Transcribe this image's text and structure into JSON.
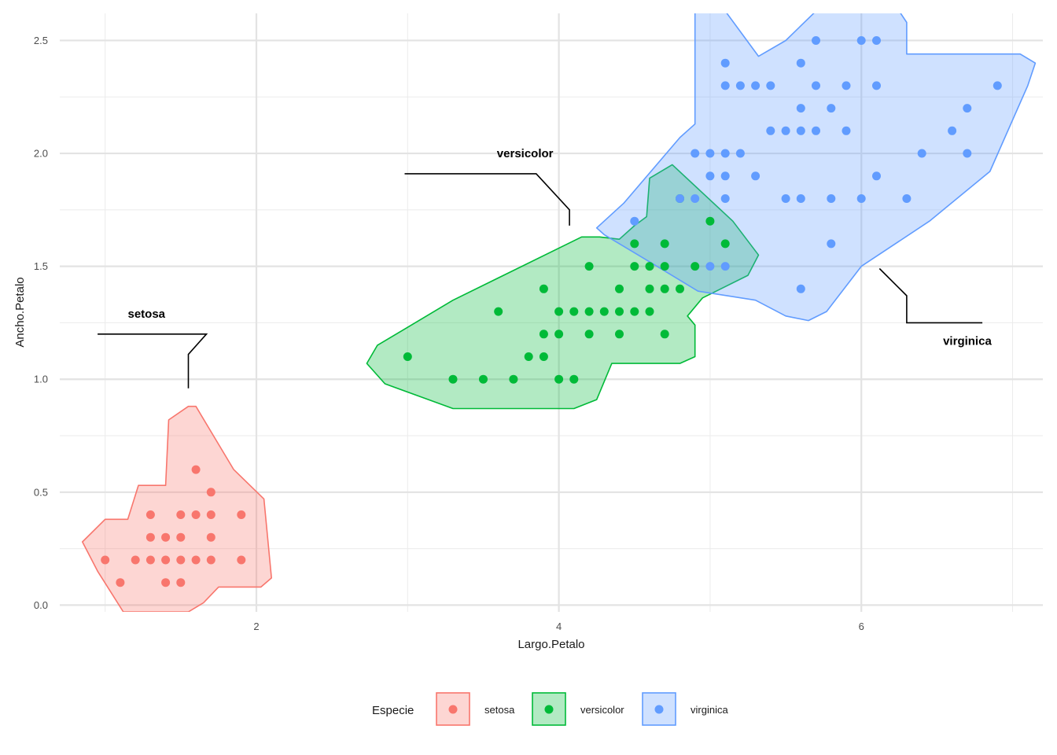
{
  "chart_data": {
    "type": "scatter",
    "xlabel": "Largo.Petalo",
    "ylabel": "Ancho.Petalo",
    "xlim": [
      0.7,
      7.2
    ],
    "ylim": [
      -0.03,
      2.62
    ],
    "x_ticks": [
      2,
      4,
      6
    ],
    "y_ticks": [
      0.0,
      0.5,
      1.0,
      1.5,
      2.0,
      2.5
    ],
    "x_tick_labels": [
      "2",
      "4",
      "6"
    ],
    "y_tick_labels": [
      "0.0",
      "0.5",
      "1.0",
      "1.5",
      "2.0",
      "2.5"
    ],
    "grid": true,
    "legend_position": "bottom",
    "legend": {
      "title": "Especie",
      "entries": [
        "setosa",
        "versicolor",
        "virginica"
      ]
    },
    "series": [
      {
        "name": "setosa",
        "color": "#F8766D",
        "hull": [
          [
            1.6,
            0.88
          ],
          [
            1.85,
            0.6
          ],
          [
            2.05,
            0.47
          ],
          [
            2.1,
            0.12
          ],
          [
            2.03,
            0.08
          ],
          [
            1.75,
            0.08
          ],
          [
            1.65,
            0.01
          ],
          [
            1.55,
            -0.03
          ],
          [
            1.12,
            -0.03
          ],
          [
            0.95,
            0.15
          ],
          [
            0.85,
            0.28
          ],
          [
            1.0,
            0.38
          ],
          [
            1.15,
            0.38
          ],
          [
            1.22,
            0.53
          ],
          [
            1.4,
            0.53
          ],
          [
            1.42,
            0.82
          ],
          [
            1.55,
            0.88
          ]
        ],
        "points": [
          [
            1.0,
            0.2
          ],
          [
            1.1,
            0.1
          ],
          [
            1.2,
            0.2
          ],
          [
            1.3,
            0.2
          ],
          [
            1.3,
            0.3
          ],
          [
            1.3,
            0.4
          ],
          [
            1.4,
            0.1
          ],
          [
            1.4,
            0.2
          ],
          [
            1.4,
            0.3
          ],
          [
            1.5,
            0.1
          ],
          [
            1.5,
            0.2
          ],
          [
            1.5,
            0.3
          ],
          [
            1.5,
            0.4
          ],
          [
            1.6,
            0.2
          ],
          [
            1.6,
            0.4
          ],
          [
            1.6,
            0.6
          ],
          [
            1.7,
            0.2
          ],
          [
            1.7,
            0.3
          ],
          [
            1.7,
            0.4
          ],
          [
            1.7,
            0.5
          ],
          [
            1.9,
            0.2
          ],
          [
            1.9,
            0.4
          ]
        ]
      },
      {
        "name": "versicolor",
        "color": "#00BA38",
        "hull": [
          [
            4.27,
            1.63
          ],
          [
            4.4,
            1.62
          ],
          [
            4.5,
            1.68
          ],
          [
            4.58,
            1.72
          ],
          [
            4.6,
            1.89
          ],
          [
            4.75,
            1.95
          ],
          [
            5.15,
            1.7
          ],
          [
            5.32,
            1.55
          ],
          [
            5.25,
            1.46
          ],
          [
            4.95,
            1.36
          ],
          [
            4.85,
            1.28
          ],
          [
            4.9,
            1.24
          ],
          [
            4.9,
            1.1
          ],
          [
            4.8,
            1.07
          ],
          [
            4.35,
            1.07
          ],
          [
            4.25,
            0.91
          ],
          [
            4.1,
            0.87
          ],
          [
            3.3,
            0.87
          ],
          [
            2.85,
            0.98
          ],
          [
            2.73,
            1.07
          ],
          [
            2.8,
            1.15
          ],
          [
            3.3,
            1.35
          ],
          [
            4.15,
            1.63
          ]
        ],
        "points": [
          [
            3.0,
            1.1
          ],
          [
            3.3,
            1.0
          ],
          [
            3.5,
            1.0
          ],
          [
            3.6,
            1.3
          ],
          [
            3.7,
            1.0
          ],
          [
            3.8,
            1.1
          ],
          [
            3.9,
            1.1
          ],
          [
            3.9,
            1.2
          ],
          [
            3.9,
            1.4
          ],
          [
            4.0,
            1.0
          ],
          [
            4.0,
            1.2
          ],
          [
            4.0,
            1.3
          ],
          [
            4.1,
            1.0
          ],
          [
            4.1,
            1.3
          ],
          [
            4.2,
            1.2
          ],
          [
            4.2,
            1.3
          ],
          [
            4.2,
            1.5
          ],
          [
            4.3,
            1.3
          ],
          [
            4.4,
            1.2
          ],
          [
            4.4,
            1.3
          ],
          [
            4.4,
            1.4
          ],
          [
            4.5,
            1.3
          ],
          [
            4.5,
            1.5
          ],
          [
            4.5,
            1.6
          ],
          [
            4.6,
            1.3
          ],
          [
            4.6,
            1.4
          ],
          [
            4.6,
            1.5
          ],
          [
            4.7,
            1.2
          ],
          [
            4.7,
            1.4
          ],
          [
            4.7,
            1.5
          ],
          [
            4.7,
            1.6
          ],
          [
            4.8,
            1.4
          ],
          [
            4.8,
            1.8
          ],
          [
            4.9,
            1.5
          ],
          [
            5.0,
            1.7
          ],
          [
            5.1,
            1.6
          ]
        ]
      },
      {
        "name": "virginica",
        "color": "#619CFF",
        "hull": [
          [
            4.9,
            2.63
          ],
          [
            5.1,
            2.63
          ],
          [
            5.32,
            2.43
          ],
          [
            5.5,
            2.5
          ],
          [
            5.7,
            2.63
          ],
          [
            6.25,
            2.63
          ],
          [
            6.3,
            2.58
          ],
          [
            6.3,
            2.44
          ],
          [
            7.05,
            2.44
          ],
          [
            7.15,
            2.4
          ],
          [
            7.1,
            2.3
          ],
          [
            6.85,
            1.92
          ],
          [
            6.45,
            1.7
          ],
          [
            6.0,
            1.5
          ],
          [
            5.77,
            1.3
          ],
          [
            5.65,
            1.26
          ],
          [
            5.5,
            1.28
          ],
          [
            5.3,
            1.35
          ],
          [
            4.92,
            1.39
          ],
          [
            4.6,
            1.52
          ],
          [
            4.3,
            1.64
          ],
          [
            4.25,
            1.67
          ],
          [
            4.43,
            1.78
          ],
          [
            4.8,
            2.07
          ],
          [
            4.9,
            2.13
          ],
          [
            4.9,
            2.56
          ]
        ],
        "points": [
          [
            4.5,
            1.7
          ],
          [
            4.8,
            1.8
          ],
          [
            4.9,
            1.8
          ],
          [
            4.9,
            2.0
          ],
          [
            5.0,
            1.5
          ],
          [
            5.0,
            1.9
          ],
          [
            5.0,
            2.0
          ],
          [
            5.1,
            1.5
          ],
          [
            5.1,
            1.8
          ],
          [
            5.1,
            1.9
          ],
          [
            5.1,
            2.0
          ],
          [
            5.1,
            2.3
          ],
          [
            5.1,
            2.4
          ],
          [
            5.2,
            2.0
          ],
          [
            5.2,
            2.3
          ],
          [
            5.3,
            1.9
          ],
          [
            5.3,
            2.3
          ],
          [
            5.4,
            2.1
          ],
          [
            5.4,
            2.3
          ],
          [
            5.5,
            1.8
          ],
          [
            5.5,
            2.1
          ],
          [
            5.6,
            1.4
          ],
          [
            5.6,
            1.8
          ],
          [
            5.6,
            2.1
          ],
          [
            5.6,
            2.2
          ],
          [
            5.6,
            2.4
          ],
          [
            5.7,
            2.1
          ],
          [
            5.7,
            2.3
          ],
          [
            5.7,
            2.5
          ],
          [
            5.8,
            1.6
          ],
          [
            5.8,
            1.8
          ],
          [
            5.8,
            2.2
          ],
          [
            5.9,
            2.1
          ],
          [
            5.9,
            2.3
          ],
          [
            6.0,
            1.8
          ],
          [
            6.0,
            2.5
          ],
          [
            6.1,
            1.9
          ],
          [
            6.1,
            2.3
          ],
          [
            6.1,
            2.5
          ],
          [
            6.3,
            1.8
          ],
          [
            6.4,
            2.0
          ],
          [
            6.6,
            2.1
          ],
          [
            6.7,
            2.0
          ],
          [
            6.7,
            2.2
          ],
          [
            6.9,
            2.3
          ]
        ]
      }
    ],
    "annotations": [
      {
        "label": "setosa",
        "target": [
          1.55,
          0.96
        ],
        "text_at": [
          1.15,
          1.29
        ],
        "path": [
          [
            1.55,
            0.96
          ],
          [
            1.55,
            1.11
          ],
          [
            1.67,
            1.2
          ],
          [
            0.95,
            1.2
          ]
        ]
      },
      {
        "label": "versicolor",
        "target": [
          4.07,
          1.68
        ],
        "text_at": [
          3.59,
          2.0
        ],
        "path": [
          [
            4.07,
            1.68
          ],
          [
            4.07,
            1.75
          ],
          [
            3.85,
            1.91
          ],
          [
            2.98,
            1.91
          ]
        ]
      },
      {
        "label": "virginica",
        "target": [
          6.12,
          1.49
        ],
        "text_at": [
          6.54,
          1.17
        ],
        "path": [
          [
            6.12,
            1.49
          ],
          [
            6.3,
            1.37
          ],
          [
            6.3,
            1.25
          ],
          [
            6.8,
            1.25
          ]
        ]
      }
    ]
  }
}
